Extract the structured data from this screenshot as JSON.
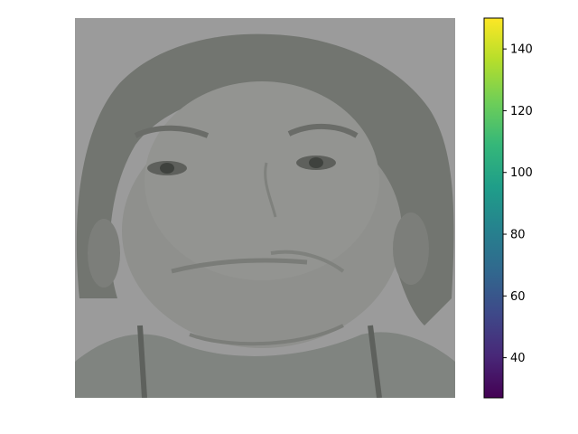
{
  "chart_data": {
    "type": "heatmap",
    "title": "",
    "xlabel": "",
    "ylabel": "",
    "axes_visible": false,
    "image_content": "grayscale face portrait",
    "colorbar": {
      "colormap": "viridis",
      "vmin": 27,
      "vmax": 150,
      "ticks": [
        40,
        60,
        80,
        100,
        120,
        140
      ],
      "tick_labels": [
        "40",
        "60",
        "80",
        "100",
        "120",
        "140"
      ],
      "colors": [
        "#440154",
        "#482878",
        "#3e4989",
        "#31688e",
        "#26828e",
        "#1f9e89",
        "#35b779",
        "#6ece58",
        "#b5de2b",
        "#fde725"
      ]
    }
  }
}
